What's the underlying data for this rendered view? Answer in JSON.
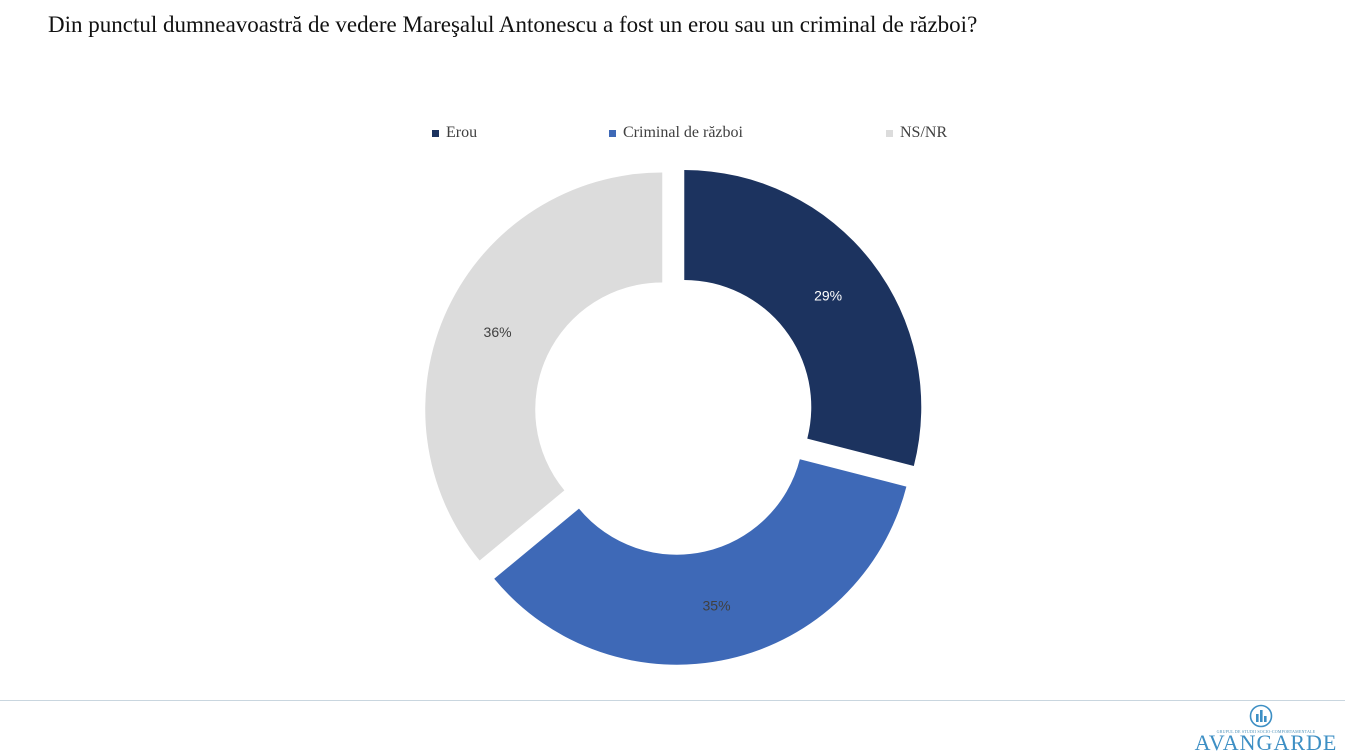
{
  "page": {
    "title": "Din punctul dumneavoastră de vedere Mareşalul Antonescu a fost un erou sau un criminal de război?"
  },
  "chart_data": {
    "type": "pie",
    "variant": "donut",
    "title": "Din punctul dumneavoastră de vedere Mareşalul Antonescu a fost un erou sau un criminal de război?",
    "legend_position": "top",
    "categories": [
      "Erou",
      "Criminal de război",
      "NS/NR"
    ],
    "values": [
      29,
      35,
      36
    ],
    "labels": [
      "29%",
      "35%",
      "36%"
    ],
    "colors": [
      "#1c335f",
      "#3e69b7",
      "#dcdcdc"
    ],
    "label_colors": [
      "#ffffff",
      "#404040",
      "#404040"
    ]
  },
  "logo": {
    "text": "AVANGARDE",
    "tagline": "GRUPUL DE STUDII SOCIO-COMPORTAMENTALE"
  }
}
